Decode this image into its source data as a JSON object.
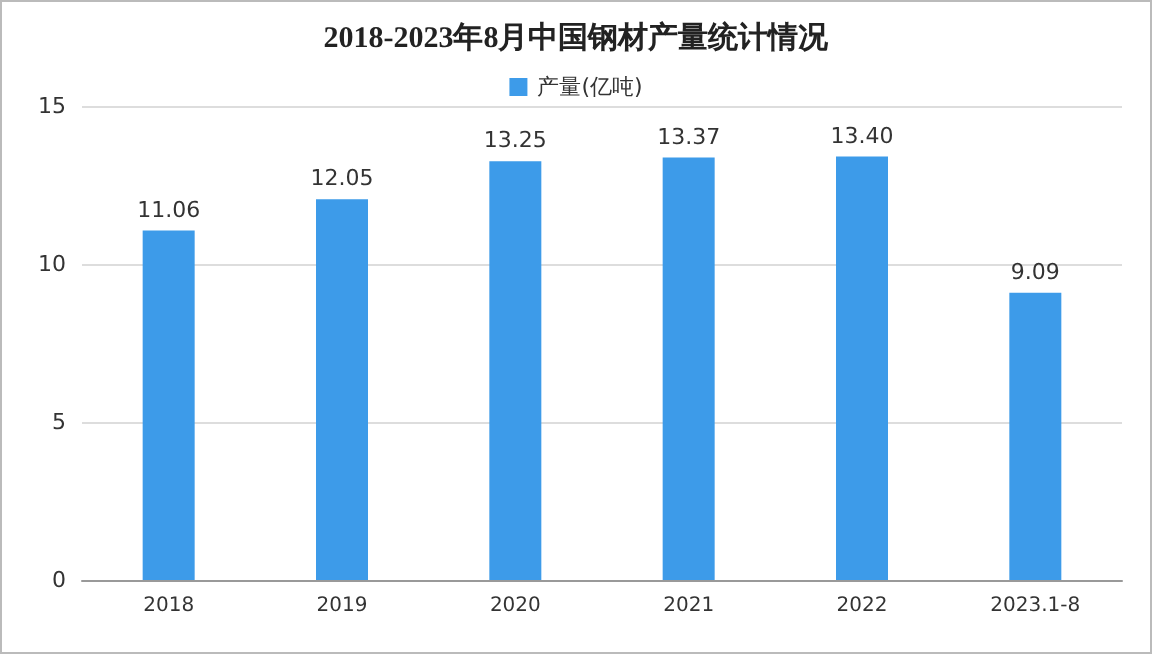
{
  "chart_data": {
    "type": "bar",
    "title": "2018-2023年8月中国钢材产量统计情况",
    "categories": [
      "2018",
      "2019",
      "2020",
      "2021",
      "2022",
      "2023.1-8"
    ],
    "series": [
      {
        "name": "产量(亿吨)",
        "color": "#3d9be9",
        "values": [
          11.06,
          12.05,
          13.25,
          13.37,
          13.4,
          9.09
        ]
      }
    ],
    "value_labels": [
      "11.06",
      "12.05",
      "13.25",
      "13.37",
      "13.40",
      "9.09"
    ],
    "ylim": [
      0,
      15
    ],
    "yticks": [
      0,
      5,
      10,
      15
    ],
    "grid": "y",
    "legend": "top"
  }
}
